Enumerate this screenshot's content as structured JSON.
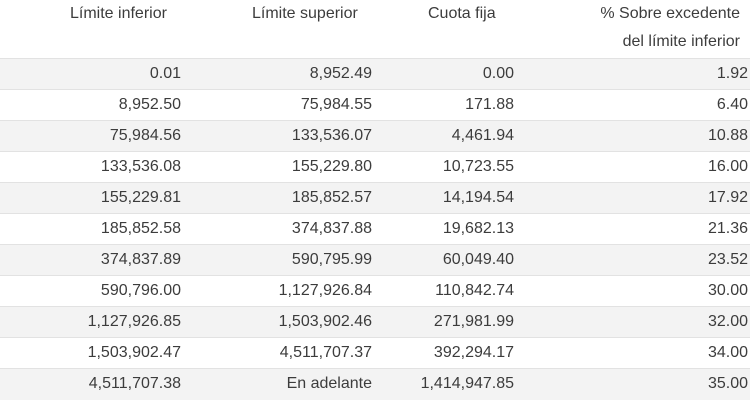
{
  "table": {
    "headers": {
      "lower_limit": "Límite inferior",
      "upper_limit": "Límite superior",
      "fixed_fee": "Cuota fija",
      "percent_line1": "% Sobre excedente",
      "percent_line2": "del límite inferior"
    },
    "rows": [
      {
        "lower": "0.01",
        "upper": "8,952.49",
        "fee": "0.00",
        "pct": "1.92"
      },
      {
        "lower": "8,952.50",
        "upper": "75,984.55",
        "fee": "171.88",
        "pct": "6.40"
      },
      {
        "lower": "75,984.56",
        "upper": "133,536.07",
        "fee": "4,461.94",
        "pct": "10.88"
      },
      {
        "lower": "133,536.08",
        "upper": "155,229.80",
        "fee": "10,723.55",
        "pct": "16.00"
      },
      {
        "lower": "155,229.81",
        "upper": "185,852.57",
        "fee": "14,194.54",
        "pct": "17.92"
      },
      {
        "lower": "185,852.58",
        "upper": "374,837.88",
        "fee": "19,682.13",
        "pct": "21.36"
      },
      {
        "lower": "374,837.89",
        "upper": "590,795.99",
        "fee": "60,049.40",
        "pct": "23.52"
      },
      {
        "lower": "590,796.00",
        "upper": "1,127,926.84",
        "fee": "110,842.74",
        "pct": "30.00"
      },
      {
        "lower": "1,127,926.85",
        "upper": "1,503,902.46",
        "fee": "271,981.99",
        "pct": "32.00"
      },
      {
        "lower": "1,503,902.47",
        "upper": "4,511,707.37",
        "fee": "392,294.17",
        "pct": "34.00"
      },
      {
        "lower": "4,511,707.38",
        "upper": "En adelante",
        "fee": "1,414,947.85",
        "pct": "35.00"
      }
    ]
  }
}
